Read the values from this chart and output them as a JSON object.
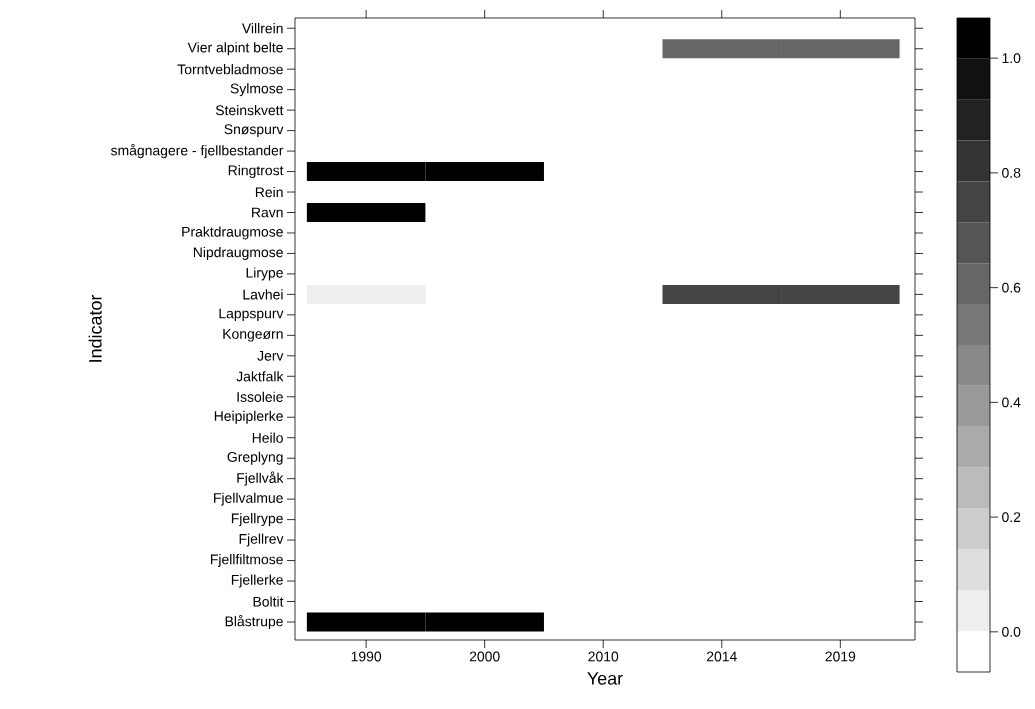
{
  "chart_data": {
    "type": "heatmap",
    "xlabel": "Year",
    "ylabel": "Indicator",
    "categories": [
      "1990",
      "2000",
      "2010",
      "2014",
      "2019"
    ],
    "y_categories": [
      "Villrein",
      "Vier alpint belte",
      "Torntvebladmose",
      "Sylmose",
      "Steinskvett",
      "Snøspurv",
      "smågnagere - fjellbestander",
      "Ringtrost",
      "Rein",
      "Ravn",
      "Praktdraugmose",
      "Nipdraugmose",
      "Lirype",
      "Lavhei",
      "Lappspurv",
      "Kongeørn",
      "Jerv",
      "Jaktfalk",
      "Issoleie",
      "Heipiplerke",
      "Heilo",
      "Greplyng",
      "Fjellvåk",
      "Fjellvalmue",
      "Fjellrype",
      "Fjellrev",
      "Fjellfiltmose",
      "Fjellerke",
      "Boltit",
      "Blåstrupe"
    ],
    "cells": [
      [
        null,
        null,
        null,
        null,
        null
      ],
      [
        null,
        null,
        null,
        0.6,
        0.6
      ],
      [
        null,
        null,
        null,
        null,
        null
      ],
      [
        null,
        null,
        null,
        null,
        null
      ],
      [
        null,
        null,
        null,
        null,
        null
      ],
      [
        null,
        null,
        null,
        null,
        null
      ],
      [
        null,
        null,
        null,
        null,
        null
      ],
      [
        1.0,
        1.0,
        null,
        null,
        null
      ],
      [
        null,
        null,
        null,
        null,
        null
      ],
      [
        1.0,
        null,
        null,
        null,
        null
      ],
      [
        null,
        null,
        null,
        null,
        null
      ],
      [
        null,
        null,
        null,
        null,
        null
      ],
      [
        null,
        null,
        null,
        null,
        null
      ],
      [
        0.03,
        null,
        null,
        0.75,
        0.75
      ],
      [
        null,
        null,
        null,
        null,
        null
      ],
      [
        null,
        null,
        null,
        null,
        null
      ],
      [
        null,
        null,
        null,
        null,
        null
      ],
      [
        null,
        null,
        null,
        null,
        null
      ],
      [
        null,
        null,
        null,
        null,
        null
      ],
      [
        null,
        null,
        null,
        null,
        null
      ],
      [
        null,
        null,
        null,
        null,
        null
      ],
      [
        null,
        null,
        null,
        null,
        null
      ],
      [
        null,
        null,
        null,
        null,
        null
      ],
      [
        null,
        null,
        null,
        null,
        null
      ],
      [
        null,
        null,
        null,
        null,
        null
      ],
      [
        null,
        null,
        null,
        null,
        null
      ],
      [
        null,
        null,
        null,
        null,
        null
      ],
      [
        null,
        null,
        null,
        null,
        null
      ],
      [
        null,
        null,
        null,
        null,
        null
      ],
      [
        1.0,
        1.0,
        null,
        null,
        null
      ]
    ],
    "clim": [
      -0.07,
      1.07
    ],
    "cticks": [
      {
        "value": 0,
        "label": "0.0"
      },
      {
        "value": 0.2,
        "label": "0.2"
      },
      {
        "value": 0.4,
        "label": "0.4"
      },
      {
        "value": 0.6,
        "label": "0.6"
      },
      {
        "value": 0.8,
        "label": "0.8"
      },
      {
        "value": 1.0,
        "label": "1.0"
      }
    ]
  }
}
